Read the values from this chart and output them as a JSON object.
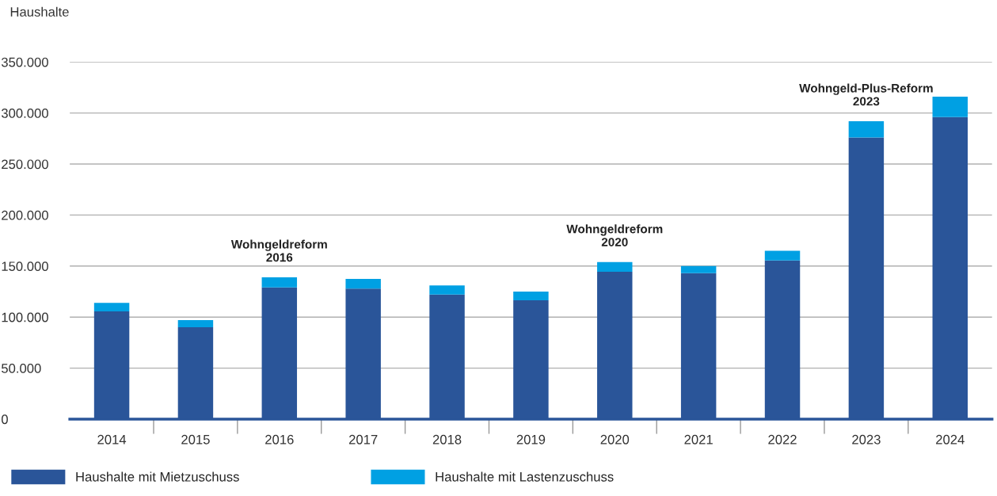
{
  "chart_data": {
    "type": "bar",
    "stacked": true,
    "ylabel": "Haushalte",
    "categories": [
      "2014",
      "2015",
      "2016",
      "2017",
      "2018",
      "2019",
      "2020",
      "2021",
      "2022",
      "2023",
      "2024"
    ],
    "series": [
      {
        "name": "Haushalte mit Mietzuschuss",
        "color": "#2a5599",
        "values": [
          105500,
          90000,
          129000,
          128000,
          122000,
          116500,
          144500,
          143000,
          155500,
          276000,
          296000
        ]
      },
      {
        "name": "Haushalte mit Lastenzuschuss",
        "color": "#00a0e3",
        "values": [
          8500,
          7000,
          10000,
          9500,
          9000,
          8500,
          9500,
          7000,
          9500,
          16000,
          20000
        ]
      }
    ],
    "ylim": [
      0,
      350000
    ],
    "yticks": [
      0,
      {
        "value": 50000,
        "label": "50.000"
      },
      {
        "value": 100000,
        "label": "100.000"
      },
      {
        "value": 150000,
        "label": "150.000"
      },
      {
        "value": 200000,
        "label": "200.000"
      },
      {
        "value": 250000,
        "label": "250.000"
      },
      {
        "value": 300000,
        "label": "300.000"
      },
      {
        "value": 350000,
        "label": "350.000"
      }
    ],
    "grid": "y",
    "legend": "bottom",
    "annotations": [
      {
        "text": "Wohngeldreform\n2016",
        "x": "2016",
        "y": 139000
      },
      {
        "text": "Wohngeldreform\n2020",
        "x": "2020",
        "y": 154000
      },
      {
        "text": "Wohngeld-Plus-Reform\n2023",
        "x": "2023",
        "y": 292000
      }
    ]
  }
}
